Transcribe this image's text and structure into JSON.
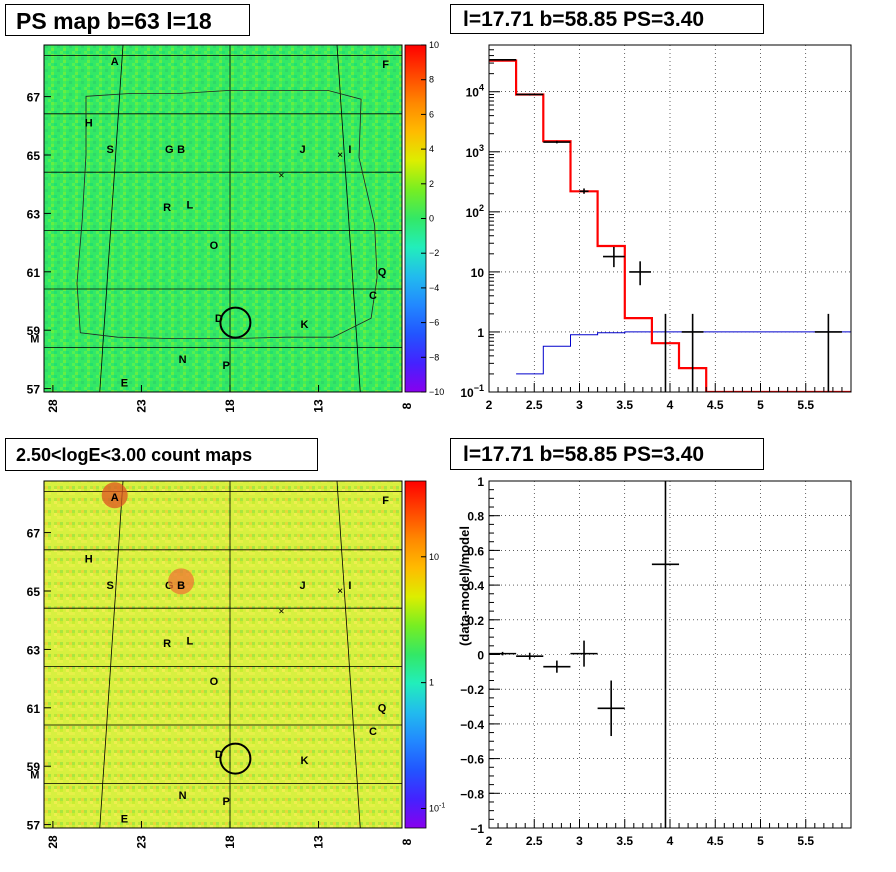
{
  "titles": {
    "tl": "PS map b=63 l=18",
    "tr": "l=17.71 b=58.85 PS=3.40",
    "bl": "2.50<logE<3.00 count maps",
    "br": "l=17.71 b=58.85 PS=3.40"
  },
  "colors": {
    "model_red": "#ff0000",
    "model_blue": "#0000cc",
    "data_black": "#000000",
    "map_green": "#33e866",
    "map_yellow": "#d8f040"
  },
  "maps": {
    "x_ticks": [
      "28",
      "23",
      "18",
      "13",
      "8"
    ],
    "y_ticks": [
      "67",
      "65",
      "63",
      "61",
      "59",
      "57"
    ],
    "sources": [
      {
        "label": "A",
        "l": 25.2,
        "b": 67.8
      },
      {
        "label": "F",
        "l": 8.3,
        "b": 67.7
      },
      {
        "label": "H",
        "l": 26.5,
        "b": 65.7
      },
      {
        "label": "S",
        "l": 25.1,
        "b": 64.8
      },
      {
        "label": "G",
        "l": 21.6,
        "b": 64.8
      },
      {
        "label": "B",
        "l": 20.9,
        "b": 64.8
      },
      {
        "label": "J",
        "l": 13.7,
        "b": 64.8
      },
      {
        "label": "I",
        "l": 10.9,
        "b": 64.8
      },
      {
        "label": "R",
        "l": 21.6,
        "b": 62.8
      },
      {
        "label": "L",
        "l": 20.3,
        "b": 62.9
      },
      {
        "label": "O",
        "l": 18.9,
        "b": 61.5
      },
      {
        "label": "Q",
        "l": 9.6,
        "b": 60.6
      },
      {
        "label": "C",
        "l": 10.2,
        "b": 59.8
      },
      {
        "label": "D",
        "l": 18.6,
        "b": 59.0
      },
      {
        "label": "K",
        "l": 14.0,
        "b": 58.8
      },
      {
        "label": "M",
        "l": 28.4,
        "b": 58.3
      },
      {
        "label": "P",
        "l": 18.2,
        "b": 57.4
      },
      {
        "label": "N",
        "l": 20.5,
        "b": 57.6
      },
      {
        "label": "E",
        "l": 23.5,
        "b": 56.8
      }
    ],
    "marker": {
      "l": 17.71,
      "b": 58.85
    },
    "ps_colorbar_ticks": [
      "10",
      "8",
      "6",
      "4",
      "2",
      "0",
      "−2",
      "−4",
      "−6",
      "−8",
      "−10"
    ],
    "ps_colorbar_range": [
      -10,
      10
    ],
    "count_colorbar_ticks": [
      {
        "label": "10",
        "value": 10
      },
      {
        "label": "1",
        "value": 1
      },
      {
        "label": "10",
        "sup": "-1",
        "value": 0.1
      }
    ],
    "count_colorbar_range": [
      0.07,
      40
    ]
  },
  "chart_data": [
    {
      "type": "line",
      "panel": "spectrum",
      "xlim": [
        2,
        6
      ],
      "ylim": [
        0.1,
        60000
      ],
      "yscale": "log",
      "x_ticks": [
        "2",
        "2.5",
        "3",
        "3.5",
        "4",
        "4.5",
        "5",
        "5.5"
      ],
      "y_ticks": [
        {
          "base": "10",
          "sup": "4",
          "value": 10000
        },
        {
          "base": "10",
          "sup": "3",
          "value": 1000
        },
        {
          "base": "10",
          "sup": "2",
          "value": 100
        },
        {
          "base": "10",
          "value": 10
        },
        {
          "base": "1",
          "value": 1
        },
        {
          "base": "10",
          "sup": "−1",
          "value": 0.1
        }
      ],
      "grid": true,
      "model_total": {
        "edges": [
          2.0,
          2.3,
          2.6,
          2.9,
          3.2,
          3.5,
          3.8,
          4.1,
          4.4,
          6.0
        ],
        "values": [
          33000,
          9000,
          1500,
          220,
          27,
          1.7,
          0.65,
          0.25,
          0.1
        ]
      },
      "model_bkg": {
        "edges": [
          2.3,
          2.6,
          2.9,
          3.2,
          3.5,
          3.8,
          4.1,
          4.4,
          6.0
        ],
        "values": [
          0.2,
          0.58,
          0.9,
          0.97,
          1.0,
          1.0,
          1.0,
          1.0
        ]
      },
      "data": [
        {
          "x": 2.15,
          "y": 34000,
          "xerr": 0.15,
          "ylo": 33000,
          "yhi": 35000
        },
        {
          "x": 2.45,
          "y": 9000,
          "xerr": 0.15,
          "ylo": 8700,
          "yhi": 9300
        },
        {
          "x": 2.75,
          "y": 1450,
          "xerr": 0.15,
          "ylo": 1380,
          "yhi": 1520
        },
        {
          "x": 3.05,
          "y": 220,
          "xerr": 0.05,
          "ylo": 200,
          "yhi": 245
        },
        {
          "x": 3.38,
          "y": 18,
          "xerr": 0.12,
          "ylo": 12,
          "yhi": 26
        },
        {
          "x": 3.67,
          "y": 10,
          "xerr": 0.12,
          "ylo": 6,
          "yhi": 15
        },
        {
          "x": 3.95,
          "y": 0.1,
          "xerr": 0,
          "ylo": 0.1,
          "yhi": 2.0
        },
        {
          "x": 4.25,
          "y": 1.0,
          "xerr": 0.12,
          "ylo": 0.1,
          "yhi": 2.0
        },
        {
          "x": 5.75,
          "y": 1.0,
          "xerr": 0.15,
          "ylo": 0.1,
          "yhi": 2.0
        }
      ]
    },
    {
      "type": "scatter",
      "panel": "residuals",
      "ylabel": "(data-model)/model",
      "xlim": [
        2,
        6
      ],
      "ylim": [
        -1,
        1
      ],
      "x_ticks": [
        "2",
        "2.5",
        "3",
        "3.5",
        "4",
        "4.5",
        "5",
        "5.5"
      ],
      "y_ticks": [
        "1",
        "0.8",
        "0.6",
        "0.4",
        "0.2",
        "0",
        "−0.2",
        "−0.4",
        "−0.6",
        "−0.8",
        "−1"
      ],
      "grid": true,
      "points": [
        {
          "x": 2.15,
          "y": 0.005,
          "xerr": 0.15,
          "yerr": 0.01
        },
        {
          "x": 2.45,
          "y": -0.01,
          "xerr": 0.15,
          "yerr": 0.02
        },
        {
          "x": 2.75,
          "y": -0.07,
          "xerr": 0.15,
          "yerr": 0.035
        },
        {
          "x": 3.05,
          "y": 0.005,
          "xerr": 0.15,
          "yerr": 0.075
        },
        {
          "x": 3.35,
          "y": -0.31,
          "xerr": 0.15,
          "yerr": 0.16
        },
        {
          "x": 3.95,
          "y": 0.52,
          "xerr": 0.15,
          "yerr": 1.6
        }
      ]
    }
  ]
}
